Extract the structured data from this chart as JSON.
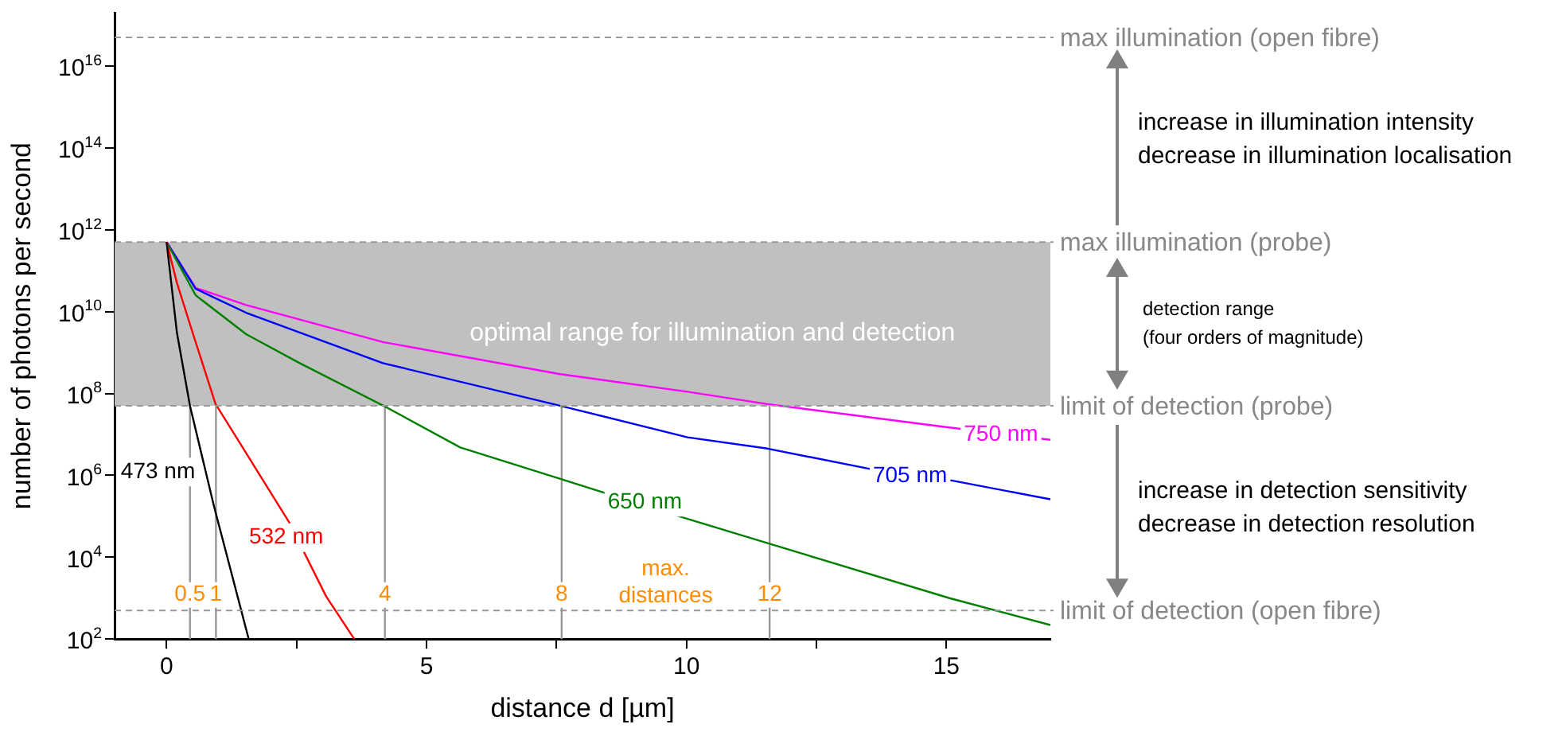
{
  "chart_data": {
    "type": "line",
    "xlabel": "distance d [µm]",
    "ylabel": "number of photons per second",
    "xlim": [
      -1,
      17
    ],
    "xticks": [
      0,
      {
        "value": 2.5,
        "label": null
      },
      5,
      {
        "value": 7.5,
        "label": null
      },
      10,
      {
        "value": 12.5,
        "label": null
      },
      15
    ],
    "ylim": [
      100,
      2e+17
    ],
    "yticks": [
      {
        "value": 100,
        "label": "10$^{2}$"
      },
      {
        "value": 10000.0,
        "label": "10$^{4}$"
      },
      {
        "value": 1000000.0,
        "label": "10$^{6}$"
      },
      {
        "value": 100000000.0,
        "label": "10$^{8}$"
      },
      {
        "value": 10000000000.0,
        "label": "10$^{10}$"
      },
      {
        "value": 1000000000000.0,
        "label": "10$^{12}$"
      },
      {
        "value": 100000000000000.0,
        "label": "10$^{14}$"
      },
      {
        "value": 1e+16,
        "label": "10$^{16}$"
      }
    ],
    "log": "y",
    "grid": false,
    "legend": false,
    "marker": "none",
    "line_style": "solid",
    "series": [
      {
        "name": "473 nm",
        "color": "#000000",
        "x": [
          0,
          0.2,
          0.45,
          0.91,
          1.58
        ],
        "values": [
          500000000000.0,
          3000000000.0,
          50000000.0,
          180000.0,
          100
        ]
      },
      {
        "name": "532 nm",
        "color": "#ff0000",
        "x": [
          0,
          0.2,
          0.5,
          0.94,
          2.35,
          3.07,
          3.61
        ],
        "values": [
          500000000000.0,
          50000000000.0,
          3100000000.0,
          56000000.0,
          74000.0,
          1100.0,
          100
        ]
      },
      {
        "name": "650 nm",
        "color": "#008000",
        "x": [
          0,
          0.56,
          1.53,
          2.56,
          4.16,
          5.65,
          7.6,
          10.02,
          11.56,
          15.06,
          17
        ],
        "values": [
          500000000000.0,
          25000000000.0,
          2800000000.0,
          550000000.0,
          51000000.0,
          4800000.0,
          800000.0,
          86000.0,
          22000.0,
          1000.0,
          220
        ]
      },
      {
        "name": "705 nm",
        "color": "#0000ff",
        "x": [
          0,
          0.56,
          1.53,
          4.16,
          7.55,
          10.02,
          11.56,
          13.57,
          15.1,
          17
        ],
        "values": [
          500000000000.0,
          36000000000.0,
          9400000000.0,
          550000000.0,
          51000000.0,
          8500000.0,
          4500000.0,
          1400000.0,
          750000.0,
          260000.0
        ]
      },
      {
        "name": "750 nm",
        "color": "#ff00ff",
        "x": [
          0,
          0.56,
          1.53,
          4.16,
          7.55,
          10.02,
          11.56,
          14.9,
          17
        ],
        "values": [
          500000000000.0,
          38000000000.0,
          14500000000.0,
          1800000000.0,
          300000000.0,
          110000000.0,
          55000000.0,
          15600000.0,
          7400000.0
        ]
      }
    ],
    "ref_lines": [
      {
        "axis": "y",
        "value": 5e+16,
        "label": "max illumination (open fibre)",
        "color": "#999999",
        "line_style": "dashed"
      },
      {
        "axis": "y",
        "value": 500000000000.0,
        "label": "max illumination (probe)",
        "color": "#999999",
        "line_style": "dashed"
      },
      {
        "axis": "y",
        "value": 50000000.0,
        "label": "limit of detection (probe)",
        "color": "#999999",
        "line_style": "dashed"
      },
      {
        "axis": "y",
        "value": 500,
        "label": "limit of detection (open fibre)",
        "color": "#999999",
        "line_style": "dashed"
      },
      {
        "axis": "x",
        "value": 0.45,
        "label": "0.5",
        "color": "#999999",
        "line_style": "solid"
      },
      {
        "axis": "x",
        "value": 0.95,
        "label": "1",
        "color": "#999999",
        "line_style": "solid"
      },
      {
        "axis": "x",
        "value": 4.2,
        "label": "4",
        "color": "#999999",
        "line_style": "solid"
      },
      {
        "axis": "x",
        "value": 7.6,
        "label": "8",
        "color": "#999999",
        "line_style": "solid"
      },
      {
        "axis": "x",
        "value": 11.6,
        "label": "12",
        "color": "#999999",
        "line_style": "solid"
      }
    ],
    "bands": [
      {
        "axis": "y",
        "from": 50000000.0,
        "to": 500000000000.0,
        "label": "optimal range for illumination and detection",
        "color": "#c0c0c0"
      }
    ],
    "annotations": [
      "max.\ndistances",
      "increase in illumination intensity\ndecrease in illumination localisation",
      "detection range\n(four orders of magnitude)",
      "increase in detection sensitivity\ndecrease in detection resolution"
    ]
  }
}
